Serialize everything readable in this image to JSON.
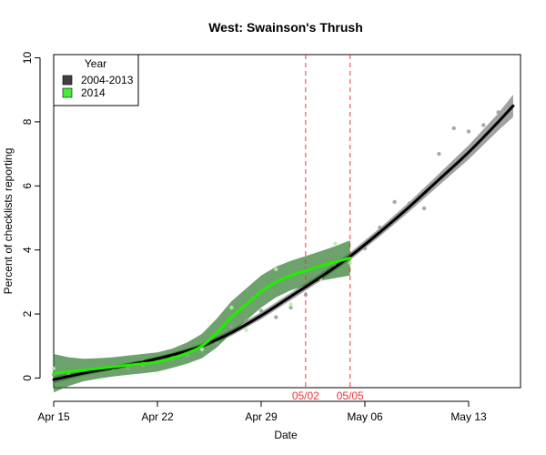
{
  "chart_data": {
    "type": "scatter",
    "title": "West: Swainson's Thrush",
    "xlabel": "Date",
    "ylabel": "Percent of checklists reporting",
    "xlim": [
      105,
      136.5
    ],
    "ylim": [
      -0.3,
      10.1
    ],
    "x_ticks": [
      {
        "x": 105,
        "label": "Apr 15"
      },
      {
        "x": 112,
        "label": "Apr 22"
      },
      {
        "x": 119,
        "label": "Apr 29"
      },
      {
        "x": 126,
        "label": "May 06"
      },
      {
        "x": 133,
        "label": "May 13"
      }
    ],
    "y_ticks": [
      0,
      2,
      4,
      6,
      8,
      10
    ],
    "legend": {
      "title": "Year",
      "position": "top-left",
      "entries": [
        {
          "label": "2004-2013",
          "color": "#404040"
        },
        {
          "label": "2014",
          "color": "#44ee33"
        }
      ]
    },
    "reference_lines": [
      {
        "x": 122,
        "label": "05/02",
        "color": "#ee3333"
      },
      {
        "x": 125,
        "label": "05/05",
        "color": "#ee3333"
      }
    ],
    "series": [
      {
        "name": "2004-2013",
        "color": "#000000",
        "band_color": "#555555",
        "points": [
          [
            105,
            0.1
          ],
          [
            106,
            0.15
          ],
          [
            107,
            0.2
          ],
          [
            108,
            0.25
          ],
          [
            109,
            0.3
          ],
          [
            110,
            0.3
          ],
          [
            111,
            0.4
          ],
          [
            112,
            0.5
          ],
          [
            113,
            0.6
          ],
          [
            114,
            0.7
          ],
          [
            115,
            0.9
          ],
          [
            116,
            1.1
          ],
          [
            117,
            1.6
          ],
          [
            118,
            1.8
          ],
          [
            119,
            2.1
          ],
          [
            120,
            1.9
          ],
          [
            121,
            2.2
          ],
          [
            122,
            2.6
          ],
          [
            123,
            3.1
          ],
          [
            124,
            3.5
          ],
          [
            125,
            3.8
          ],
          [
            126,
            4.05
          ],
          [
            127,
            4.7
          ],
          [
            128,
            5.5
          ],
          [
            129,
            5.45
          ],
          [
            130,
            5.3
          ],
          [
            131,
            7.0
          ],
          [
            132,
            7.8
          ],
          [
            133,
            7.7
          ],
          [
            134,
            7.9
          ],
          [
            135,
            8.3
          ]
        ],
        "smooth": [
          [
            105,
            -0.05
          ],
          [
            107,
            0.15
          ],
          [
            109,
            0.32
          ],
          [
            111,
            0.5
          ],
          [
            113,
            0.72
          ],
          [
            115,
            1.0
          ],
          [
            117,
            1.42
          ],
          [
            119,
            1.95
          ],
          [
            121,
            2.55
          ],
          [
            123,
            3.15
          ],
          [
            125,
            3.8
          ],
          [
            127,
            4.55
          ],
          [
            129,
            5.35
          ],
          [
            131,
            6.2
          ],
          [
            133,
            7.05
          ],
          [
            135,
            8.0
          ],
          [
            136,
            8.5
          ]
        ],
        "band": [
          [
            105,
            0.12
          ],
          [
            107,
            0.08
          ],
          [
            109,
            0.07
          ],
          [
            111,
            0.07
          ],
          [
            113,
            0.07
          ],
          [
            115,
            0.08
          ],
          [
            117,
            0.1
          ],
          [
            119,
            0.11
          ],
          [
            121,
            0.12
          ],
          [
            123,
            0.12
          ],
          [
            125,
            0.12
          ],
          [
            127,
            0.13
          ],
          [
            129,
            0.15
          ],
          [
            131,
            0.18
          ],
          [
            133,
            0.22
          ],
          [
            135,
            0.27
          ],
          [
            136,
            0.35
          ]
        ]
      },
      {
        "name": "2014",
        "color": "#22ee00",
        "band_color": "#2f7a2f",
        "points": [
          [
            105,
            0.3
          ],
          [
            108,
            0.25
          ],
          [
            111,
            0.5
          ],
          [
            113,
            0.7
          ],
          [
            115,
            0.9
          ],
          [
            117,
            2.2
          ],
          [
            118,
            1.5
          ],
          [
            120,
            3.4
          ],
          [
            121,
            2.3
          ],
          [
            123,
            3.1
          ],
          [
            124,
            4.2
          ],
          [
            125,
            3.6
          ]
        ],
        "smooth": [
          [
            105,
            0.15
          ],
          [
            106,
            0.2
          ],
          [
            107,
            0.25
          ],
          [
            108,
            0.3
          ],
          [
            109,
            0.35
          ],
          [
            110,
            0.4
          ],
          [
            111,
            0.45
          ],
          [
            112,
            0.5
          ],
          [
            113,
            0.62
          ],
          [
            114,
            0.78
          ],
          [
            115,
            1.0
          ],
          [
            116,
            1.4
          ],
          [
            117,
            1.9
          ],
          [
            118,
            2.3
          ],
          [
            119,
            2.7
          ],
          [
            120,
            3.0
          ],
          [
            121,
            3.2
          ],
          [
            122,
            3.35
          ],
          [
            123,
            3.5
          ],
          [
            124,
            3.62
          ],
          [
            125,
            3.75
          ]
        ],
        "band": [
          [
            105,
            0.6
          ],
          [
            106,
            0.45
          ],
          [
            107,
            0.35
          ],
          [
            108,
            0.32
          ],
          [
            109,
            0.3
          ],
          [
            110,
            0.3
          ],
          [
            111,
            0.3
          ],
          [
            112,
            0.3
          ],
          [
            113,
            0.3
          ],
          [
            114,
            0.33
          ],
          [
            115,
            0.38
          ],
          [
            116,
            0.45
          ],
          [
            117,
            0.5
          ],
          [
            118,
            0.5
          ],
          [
            119,
            0.5
          ],
          [
            120,
            0.48
          ],
          [
            121,
            0.46
          ],
          [
            122,
            0.46
          ],
          [
            123,
            0.46
          ],
          [
            124,
            0.5
          ],
          [
            125,
            0.55
          ]
        ]
      }
    ]
  }
}
